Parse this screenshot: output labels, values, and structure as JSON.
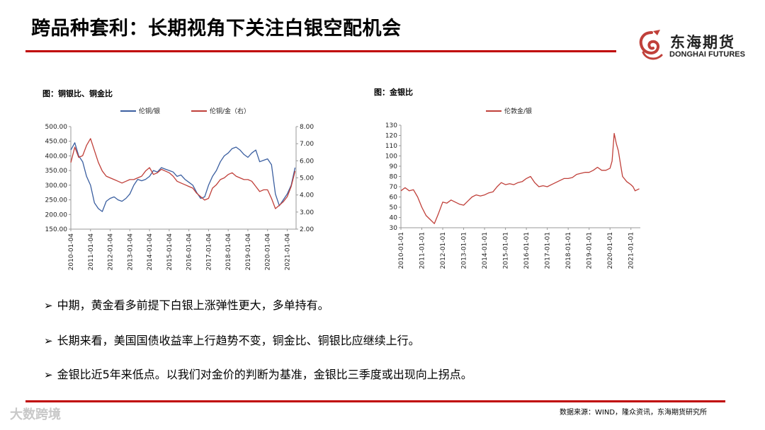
{
  "slide": {
    "title": "跨品种套利：长期视角下关注白银空配机会",
    "logo_cn": "东海期货",
    "logo_en": "DONGHAI FUTURES",
    "source": "数据来源：WIND，隆众资讯，东海期货研究所",
    "watermark": "大数跨境",
    "colors": {
      "accent": "#c00000",
      "blue": "#3b5fa0",
      "red": "#c0403a"
    }
  },
  "bullets": [
    "中期，黄金看多前提下白银上涨弹性更大，多单持有。",
    "长期来看，美国国债收益率上行趋势不变，铜金比、铜银比应继续上行。",
    "金银比近5年来低点。以我们对金价的判断为基准，金银比三季度或出现向上拐点。"
  ],
  "chart_data": [
    {
      "type": "line",
      "title": "图：铜银比、铜金比",
      "x_ticks": [
        "2010-01-04",
        "2011-01-04",
        "2012-01-04",
        "2013-01-04",
        "2014-01-04",
        "2015-01-04",
        "2016-01-04",
        "2017-01-04",
        "2018-01-04",
        "2019-01-04",
        "2020-01-04",
        "2021-01-04"
      ],
      "ylim": [
        150,
        500
      ],
      "y_ticks": [
        "150.00",
        "200.00",
        "250.00",
        "300.00",
        "350.00",
        "400.00",
        "450.00",
        "500.00"
      ],
      "y2lim": [
        2.0,
        8.0
      ],
      "y2_ticks": [
        "2.00",
        "3.00",
        "4.00",
        "5.00",
        "6.00",
        "7.00",
        "8.00"
      ],
      "legend_position": "top",
      "series": [
        {
          "name": "伦铜/银",
          "axis": "left",
          "color": "#3b5fa0",
          "x": [
            2010.0,
            2010.2,
            2010.4,
            2010.6,
            2010.8,
            2011.0,
            2011.2,
            2011.4,
            2011.6,
            2011.8,
            2012.0,
            2012.2,
            2012.4,
            2012.6,
            2012.8,
            2013.0,
            2013.2,
            2013.4,
            2013.6,
            2013.8,
            2014.0,
            2014.2,
            2014.4,
            2014.6,
            2014.8,
            2015.0,
            2015.2,
            2015.4,
            2015.6,
            2015.8,
            2016.0,
            2016.2,
            2016.4,
            2016.6,
            2016.8,
            2017.0,
            2017.2,
            2017.4,
            2017.6,
            2017.8,
            2018.0,
            2018.2,
            2018.4,
            2018.6,
            2018.8,
            2019.0,
            2019.2,
            2019.4,
            2019.6,
            2019.8,
            2020.0,
            2020.2,
            2020.4,
            2020.6,
            2020.8,
            2021.0,
            2021.2,
            2021.4
          ],
          "values": [
            420,
            445,
            400,
            380,
            330,
            300,
            240,
            220,
            210,
            245,
            255,
            260,
            250,
            245,
            255,
            270,
            300,
            320,
            315,
            320,
            330,
            350,
            345,
            360,
            355,
            350,
            345,
            330,
            335,
            320,
            310,
            300,
            275,
            255,
            260,
            300,
            330,
            350,
            380,
            400,
            410,
            425,
            430,
            420,
            405,
            395,
            410,
            420,
            380,
            385,
            390,
            370,
            270,
            230,
            250,
            270,
            300,
            360
          ]
        },
        {
          "name": "伦铜/金（右）",
          "axis": "right",
          "color": "#c0403a",
          "x": [
            2010.0,
            2010.2,
            2010.4,
            2010.6,
            2010.8,
            2011.0,
            2011.2,
            2011.4,
            2011.6,
            2011.8,
            2012.0,
            2012.2,
            2012.4,
            2012.6,
            2012.8,
            2013.0,
            2013.2,
            2013.4,
            2013.6,
            2013.8,
            2014.0,
            2014.2,
            2014.4,
            2014.6,
            2014.8,
            2015.0,
            2015.2,
            2015.4,
            2015.6,
            2015.8,
            2016.0,
            2016.2,
            2016.4,
            2016.6,
            2016.8,
            2017.0,
            2017.2,
            2017.4,
            2017.6,
            2017.8,
            2018.0,
            2018.2,
            2018.4,
            2018.6,
            2018.8,
            2019.0,
            2019.2,
            2019.4,
            2019.6,
            2019.8,
            2020.0,
            2020.2,
            2020.4,
            2020.6,
            2020.8,
            2021.0,
            2021.2,
            2021.4
          ],
          "values": [
            5.9,
            6.8,
            6.2,
            6.3,
            6.9,
            7.3,
            6.6,
            5.9,
            5.4,
            5.1,
            5.0,
            4.9,
            4.8,
            4.7,
            4.8,
            4.9,
            4.9,
            5.0,
            5.1,
            5.4,
            5.6,
            5.2,
            5.3,
            5.5,
            5.4,
            5.3,
            5.1,
            4.8,
            4.7,
            4.6,
            4.5,
            4.4,
            4.1,
            3.9,
            3.7,
            3.8,
            4.4,
            4.6,
            4.9,
            5.0,
            5.2,
            5.3,
            5.1,
            5.0,
            4.9,
            4.9,
            4.8,
            4.5,
            4.2,
            4.3,
            4.3,
            3.8,
            3.2,
            3.4,
            3.6,
            3.9,
            4.5,
            5.4
          ]
        }
      ]
    },
    {
      "type": "line",
      "title": "图：金银比",
      "x_ticks": [
        "2010-01-01",
        "2011-01-01",
        "2012-01-01",
        "2013-01-01",
        "2014-01-01",
        "2015-01-01",
        "2016-01-01",
        "2017-01-01",
        "2018-01-01",
        "2019-01-01",
        "2020-01-01",
        "2021-01-01"
      ],
      "ylim": [
        30,
        130
      ],
      "y_ticks": [
        "30",
        "40",
        "50",
        "60",
        "70",
        "80",
        "90",
        "100",
        "110",
        "120",
        "130"
      ],
      "legend_position": "top",
      "series": [
        {
          "name": "伦敦金/银",
          "color": "#c0403a",
          "x": [
            2010.0,
            2010.2,
            2010.4,
            2010.6,
            2010.8,
            2011.0,
            2011.2,
            2011.4,
            2011.6,
            2011.8,
            2012.0,
            2012.2,
            2012.4,
            2012.6,
            2012.8,
            2013.0,
            2013.2,
            2013.4,
            2013.6,
            2013.8,
            2014.0,
            2014.2,
            2014.4,
            2014.6,
            2014.8,
            2015.0,
            2015.2,
            2015.4,
            2015.6,
            2015.8,
            2016.0,
            2016.2,
            2016.4,
            2016.6,
            2016.8,
            2017.0,
            2017.2,
            2017.4,
            2017.6,
            2017.8,
            2018.0,
            2018.2,
            2018.4,
            2018.6,
            2018.8,
            2019.0,
            2019.2,
            2019.4,
            2019.6,
            2019.8,
            2020.0,
            2020.1,
            2020.2,
            2020.3,
            2020.4,
            2020.5,
            2020.6,
            2020.8,
            2021.0,
            2021.1,
            2021.2,
            2021.4
          ],
          "values": [
            66,
            69,
            66,
            67,
            60,
            50,
            42,
            38,
            34,
            44,
            55,
            54,
            57,
            55,
            53,
            52,
            56,
            60,
            62,
            61,
            62,
            64,
            65,
            70,
            74,
            72,
            73,
            72,
            74,
            75,
            78,
            80,
            74,
            70,
            71,
            70,
            72,
            74,
            76,
            78,
            78,
            79,
            82,
            83,
            84,
            84,
            86,
            89,
            86,
            86,
            88,
            95,
            122,
            112,
            105,
            92,
            80,
            75,
            72,
            70,
            66,
            68
          ]
        }
      ]
    }
  ]
}
